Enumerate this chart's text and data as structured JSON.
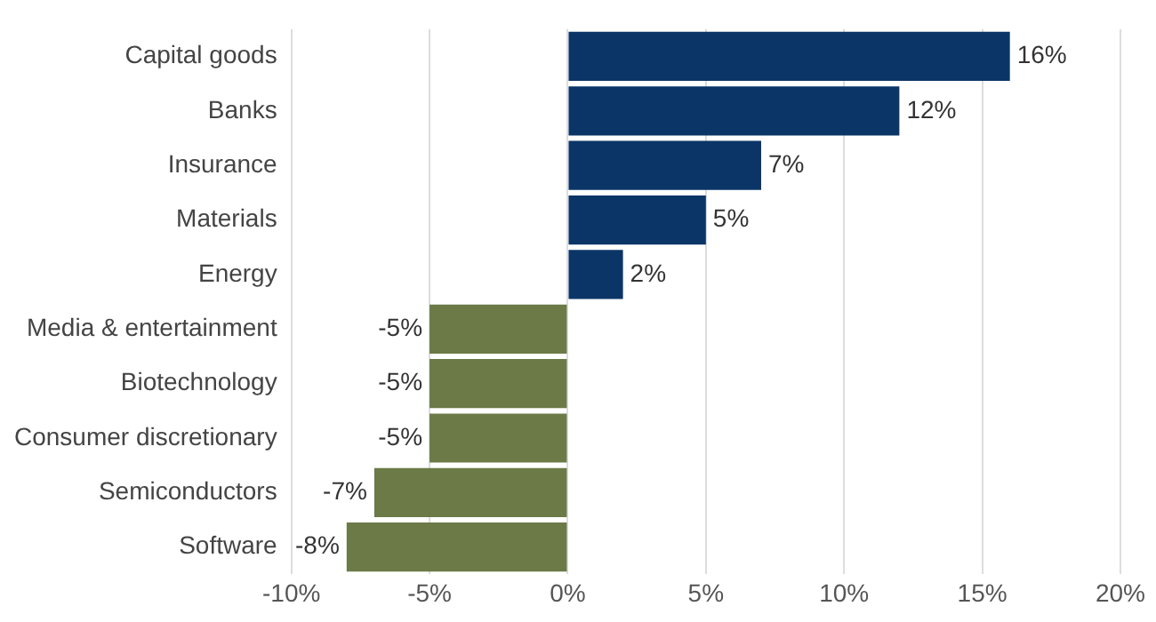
{
  "chart_data": {
    "type": "bar",
    "orientation": "horizontal",
    "categories": [
      "Capital goods",
      "Banks",
      "Insurance",
      "Materials",
      "Energy",
      "Media & entertainment",
      "Biotechnology",
      "Consumer discretionary",
      "Semiconductors",
      "Software"
    ],
    "values": [
      16,
      12,
      7,
      5,
      2,
      -5,
      -5,
      -5,
      -7,
      -8
    ],
    "colors": [
      "#0b3566",
      "#0b3566",
      "#0b3566",
      "#0b3566",
      "#0b3566",
      "#6b7a47",
      "#6b7a47",
      "#6b7a47",
      "#6b7a47",
      "#6b7a47"
    ],
    "value_labels": [
      "16%",
      "12%",
      "7%",
      "5%",
      "2%",
      "-5%",
      "-5%",
      "-5%",
      "-7%",
      "-8%"
    ],
    "xlim": [
      -10,
      20
    ],
    "xticks": [
      {
        "value": -10,
        "label": "-10%"
      },
      {
        "value": -5,
        "label": "-5%"
      },
      {
        "value": 0,
        "label": "0%"
      },
      {
        "value": 5,
        "label": "5%"
      },
      {
        "value": 10,
        "label": "10%"
      },
      {
        "value": 15,
        "label": "15%"
      },
      {
        "value": 20,
        "label": "20%"
      }
    ],
    "grid": "x",
    "legend": false
  }
}
